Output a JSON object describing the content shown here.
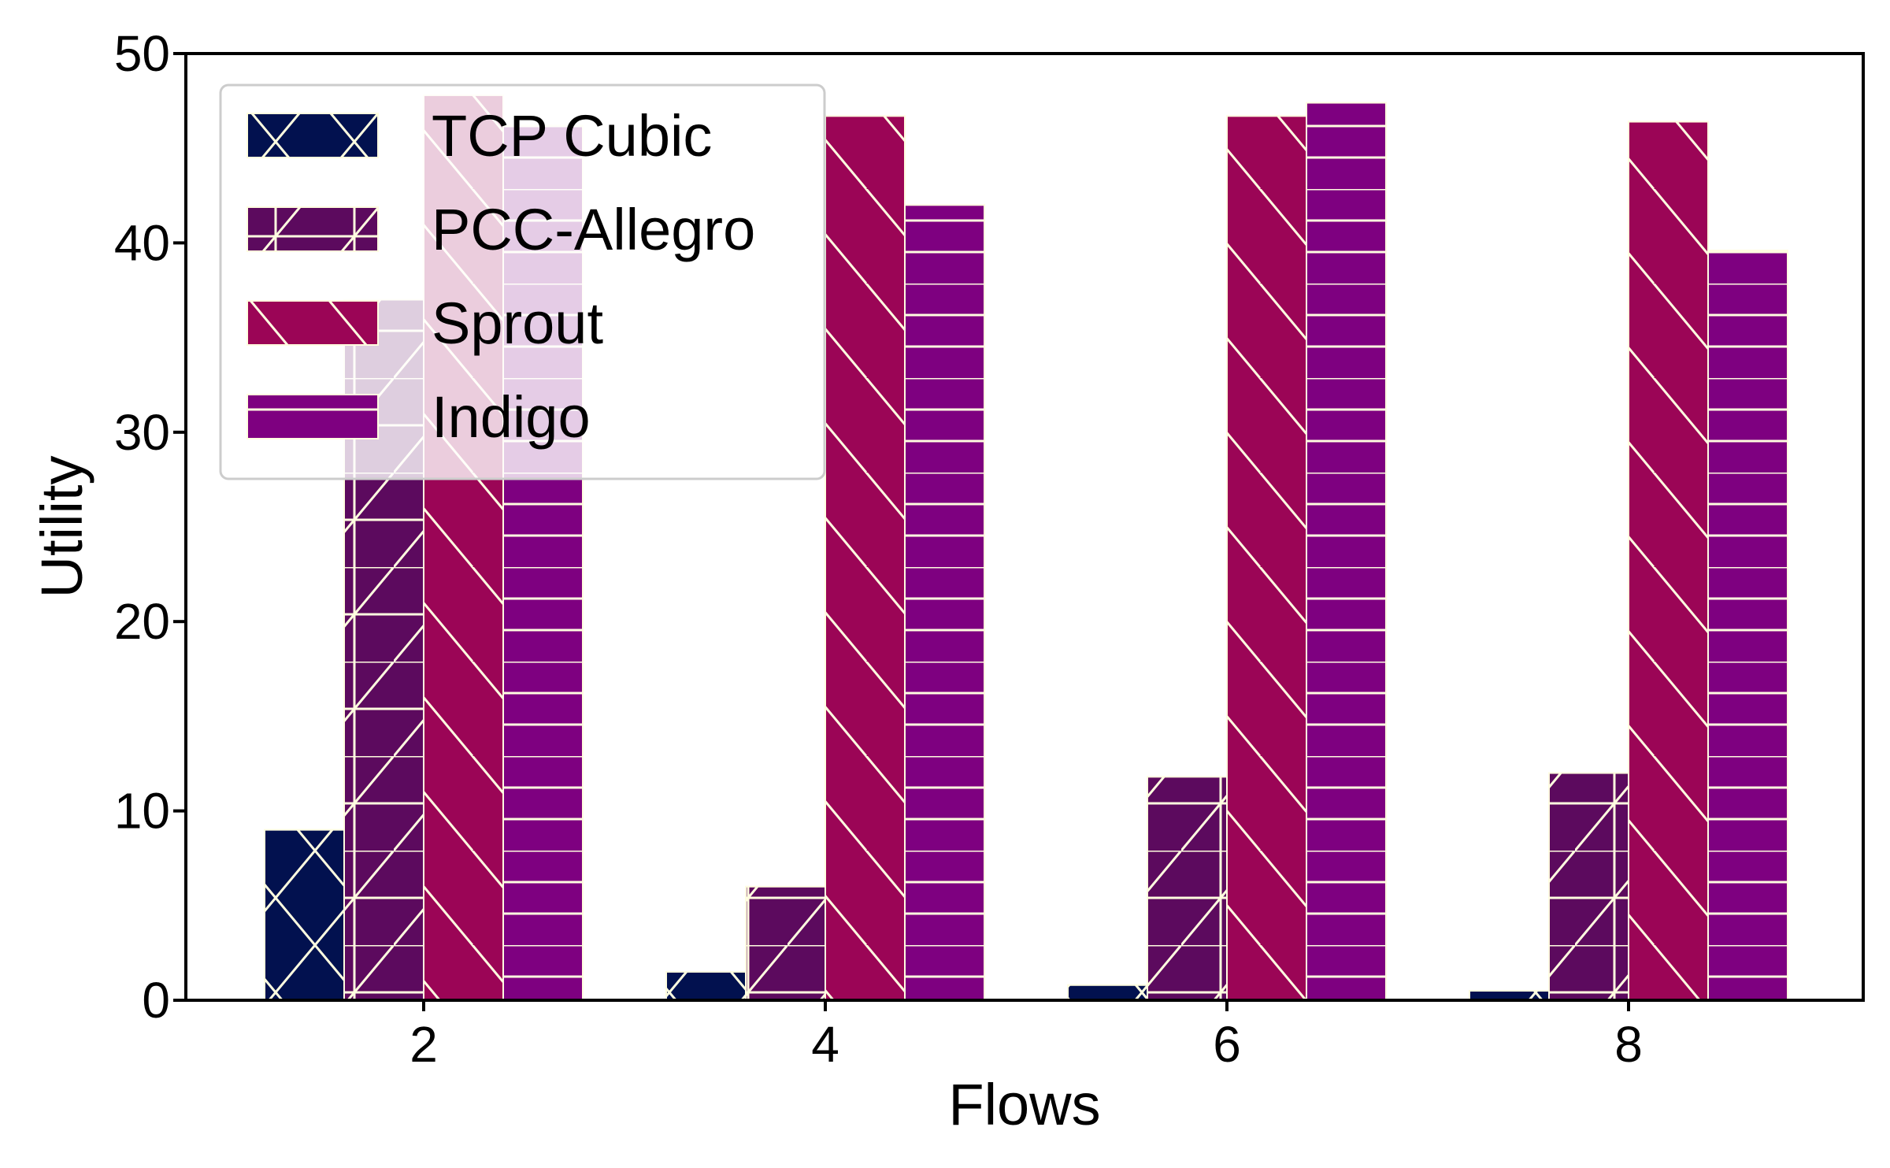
{
  "chart_data": {
    "type": "bar",
    "xlabel": "Flows",
    "ylabel": "Utility",
    "categories": [
      "2",
      "4",
      "6",
      "8"
    ],
    "ylim": [
      0,
      50
    ],
    "yticks": [
      "0",
      "10",
      "20",
      "30",
      "40",
      "50"
    ],
    "legend_position": "top-left",
    "grid": false,
    "series": [
      {
        "name": "TCP Cubic",
        "values": [
          9.0,
          1.5,
          0.8,
          0.5
        ],
        "color": "#02114f",
        "hatch": "cross-diagonal"
      },
      {
        "name": "PCC-Allegro",
        "values": [
          37.0,
          6.0,
          11.8,
          12.0
        ],
        "color": "#5c0a5e",
        "hatch": "grid-diagonal"
      },
      {
        "name": "Sprout",
        "values": [
          47.8,
          46.7,
          46.7,
          46.4
        ],
        "color": "#9b0556",
        "hatch": "back-diagonal"
      },
      {
        "name": "Indigo",
        "values": [
          46.2,
          42.0,
          47.4,
          39.6
        ],
        "color": "#7e0080",
        "hatch": "horizontal"
      }
    ],
    "hatch_color": "#fffde0"
  }
}
